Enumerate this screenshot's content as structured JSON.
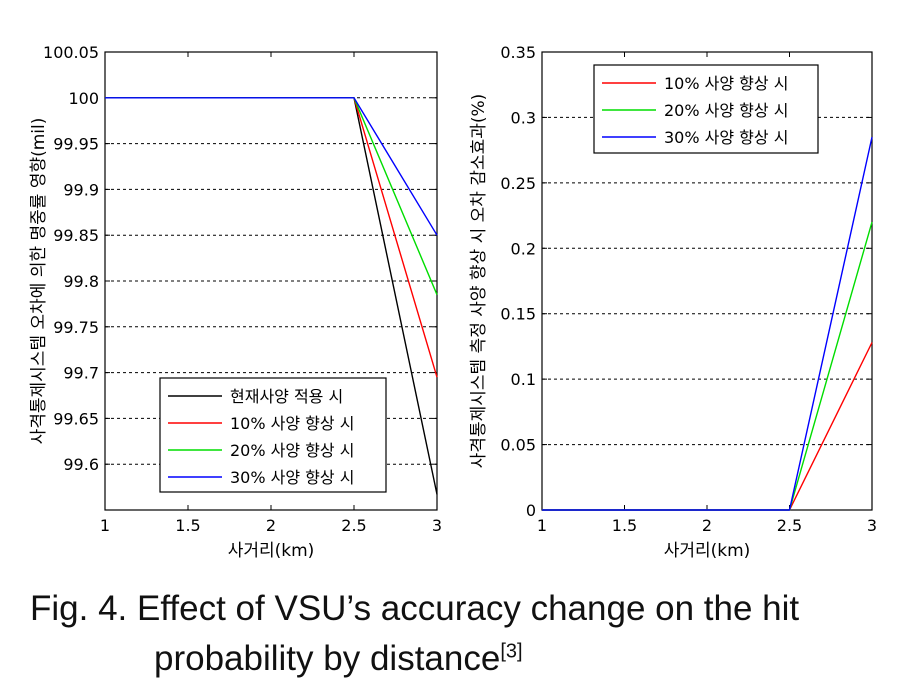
{
  "chart_data": [
    {
      "type": "line",
      "title": "",
      "xlabel": "사거리(km)",
      "ylabel": "사격통제시스템 오차에 의한 명중률 영향(mil)",
      "xlim": [
        1,
        3
      ],
      "ylim": [
        99.55,
        100.05
      ],
      "xticks": [
        1,
        1.5,
        2,
        2.5,
        3
      ],
      "xtick_labels": [
        "1",
        "1.5",
        "2",
        "2.5",
        "3"
      ],
      "yticks": [
        99.6,
        99.65,
        99.7,
        99.75,
        99.8,
        99.85,
        99.9,
        99.95,
        100,
        100.05
      ],
      "ytick_labels": [
        "99.6",
        "99.65",
        "99.7",
        "99.75",
        "99.8",
        "99.85",
        "99.9",
        "99.95",
        "100",
        "100.05"
      ],
      "grid": "horizontal-dashed",
      "legend_position": "bottom-right",
      "series": [
        {
          "name": "현재사양 적용 시",
          "color": "#000000",
          "x": [
            1,
            2.5,
            3
          ],
          "y": [
            100,
            100,
            99.567
          ]
        },
        {
          "name": "10% 사양 향상 시",
          "color": "#ff0000",
          "x": [
            1,
            2.5,
            3
          ],
          "y": [
            100,
            100,
            99.695
          ]
        },
        {
          "name": "20% 사양 향상 시",
          "color": "#00dd00",
          "x": [
            1,
            2.5,
            3
          ],
          "y": [
            100,
            100,
            99.785
          ]
        },
        {
          "name": "30% 사양 향상 시",
          "color": "#0000ff",
          "x": [
            1,
            2.5,
            3
          ],
          "y": [
            100,
            100,
            99.85
          ]
        }
      ]
    },
    {
      "type": "line",
      "title": "",
      "xlabel": "사거리(km)",
      "ylabel": "사격통제시스템 측정 사양 향상 시 오차 감소효과(%)",
      "xlim": [
        1,
        3
      ],
      "ylim": [
        0,
        0.35
      ],
      "xticks": [
        1,
        1.5,
        2,
        2.5,
        3
      ],
      "xtick_labels": [
        "1",
        "1.5",
        "2",
        "2.5",
        "3"
      ],
      "yticks": [
        0,
        0.05,
        0.1,
        0.15,
        0.2,
        0.25,
        0.3,
        0.35
      ],
      "ytick_labels": [
        "0",
        "0.05",
        "0.1",
        "0.15",
        "0.2",
        "0.25",
        "0.3",
        "0.35"
      ],
      "grid": "horizontal-dashed",
      "legend_position": "top-right",
      "series": [
        {
          "name": "10% 사양 향상 시",
          "color": "#ff0000",
          "x": [
            1,
            2.5,
            3
          ],
          "y": [
            0,
            0,
            0.128
          ]
        },
        {
          "name": "20% 사양 향상 시",
          "color": "#00dd00",
          "x": [
            1,
            2.5,
            3
          ],
          "y": [
            0,
            0,
            0.22
          ]
        },
        {
          "name": "30% 사양 향상 시",
          "color": "#0000ff",
          "x": [
            1,
            2.5,
            3
          ],
          "y": [
            0,
            0,
            0.285
          ]
        }
      ]
    }
  ],
  "caption": {
    "line1": "Fig.  4.  Effect  of  VSU’s  accuracy  change  on  the  hit",
    "line2": "probability by distance",
    "ref": "[3]"
  }
}
